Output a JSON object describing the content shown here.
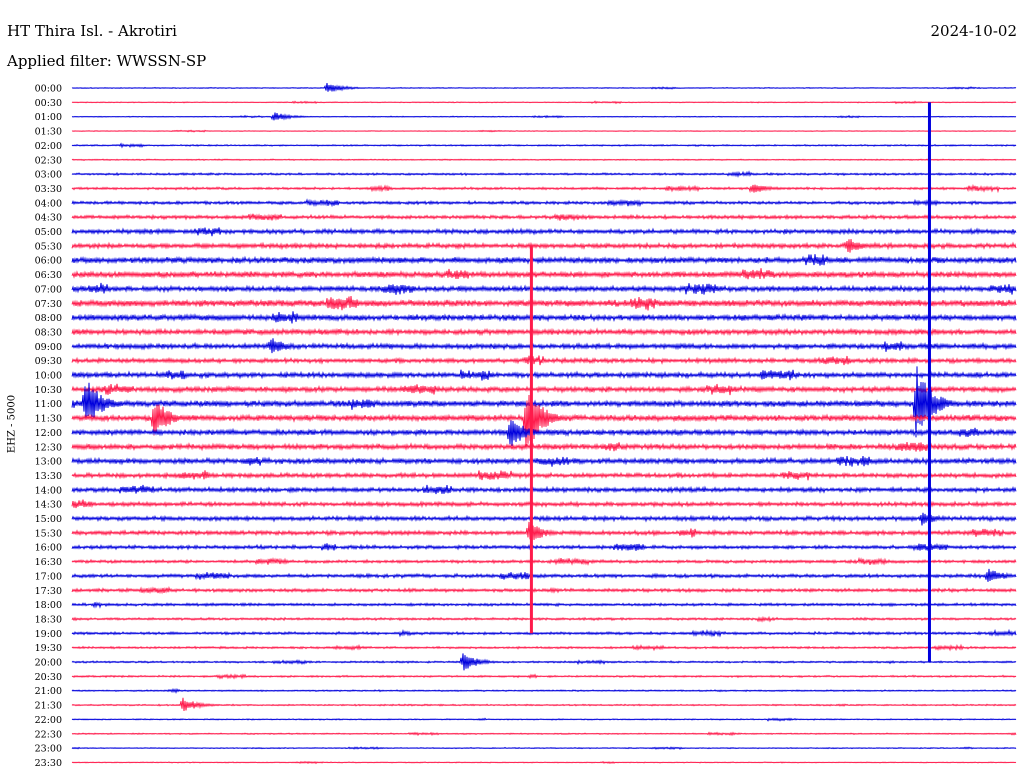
{
  "header": {
    "station": "HT Thira Isl. - Akrotiri",
    "date": "2024-10-02",
    "filter": "Applied filter: WWSSN-SP"
  },
  "colors": {
    "even_hour": "#0000dd",
    "half_hour": "#ff1a4b"
  },
  "chart_data": {
    "type": "helicorder",
    "title": "HT Thira Isl. - Akrotiri",
    "date": "2024-10-02",
    "filter": "WWSSN-SP",
    "ylabel": "EHZ - 5000",
    "trace_minutes": 30,
    "rows": [
      "00:00",
      "00:30",
      "01:00",
      "01:30",
      "02:00",
      "02:30",
      "03:00",
      "03:30",
      "04:00",
      "04:30",
      "05:00",
      "05:30",
      "06:00",
      "06:30",
      "07:00",
      "07:30",
      "08:00",
      "08:30",
      "09:00",
      "09:30",
      "10:00",
      "10:30",
      "11:00",
      "11:30",
      "12:00",
      "12:30",
      "13:00",
      "13:30",
      "14:00",
      "14:30",
      "15:00",
      "15:30",
      "16:00",
      "16:30",
      "17:00",
      "17:30",
      "18:00",
      "18:30",
      "19:00",
      "19:30",
      "20:00",
      "20:30",
      "21:00",
      "21:30",
      "22:00",
      "22:30",
      "23:00",
      "23:30"
    ],
    "noise_level": [
      0.3,
      0.3,
      0.3,
      0.25,
      0.5,
      0.4,
      0.7,
      0.8,
      1.0,
      1.2,
      1.5,
      1.6,
      2.0,
      2.0,
      1.8,
      2.2,
      2.0,
      1.8,
      1.7,
      1.5,
      1.7,
      1.8,
      2.0,
      2.0,
      1.8,
      1.8,
      1.8,
      1.5,
      1.5,
      1.4,
      1.5,
      1.4,
      1.2,
      1.0,
      1.2,
      1.1,
      0.9,
      0.8,
      0.9,
      0.7,
      0.6,
      0.6,
      0.5,
      0.5,
      0.4,
      0.4,
      0.35,
      0.3
    ],
    "events": [
      {
        "row": "00:00",
        "minute": 8.1,
        "amplitude": 6
      },
      {
        "row": "01:00",
        "minute": 6.4,
        "amplitude": 5
      },
      {
        "row": "11:00",
        "minute": 0.4,
        "amplitude": 30
      },
      {
        "row": "11:30",
        "minute": 2.6,
        "amplitude": 22
      },
      {
        "row": "11:30",
        "minute": 14.4,
        "amplitude": 40
      },
      {
        "row": "12:00",
        "minute": 13.9,
        "amplitude": 18
      },
      {
        "row": "11:00",
        "minute": 26.8,
        "amplitude": 45
      },
      {
        "row": "09:00",
        "minute": 6.3,
        "amplitude": 10
      },
      {
        "row": "20:00",
        "minute": 12.4,
        "amplitude": 10
      },
      {
        "row": "21:30",
        "minute": 3.5,
        "amplitude": 8
      },
      {
        "row": "17:00",
        "minute": 29.1,
        "amplitude": 9
      },
      {
        "row": "15:00",
        "minute": 27.0,
        "amplitude": 8
      },
      {
        "row": "15:30",
        "minute": 14.5,
        "amplitude": 12
      },
      {
        "row": "05:30",
        "minute": 24.6,
        "amplitude": 10
      },
      {
        "row": "03:30",
        "minute": 21.6,
        "amplitude": 6
      }
    ]
  }
}
